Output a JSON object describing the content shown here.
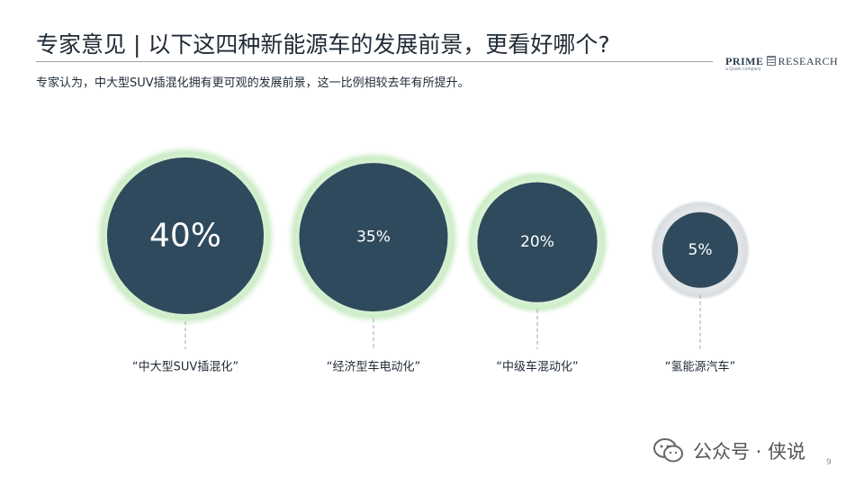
{
  "title": "专家意见 | 以下这四种新能源车的发展前景，更看好哪个?",
  "subtitle": "专家认为，中大型SUV插混化拥有更可观的发展前景，这一比例相较去年有所提升。",
  "logo": {
    "main": "PRIME",
    "main2": "RESEARCH",
    "tag": "a Quark company"
  },
  "watermark": {
    "text": "公众号 · 侠说"
  },
  "page_number": "9",
  "colors": {
    "bubble": "#2f4a5c",
    "glow": "#c8ebc2",
    "glow_grey": "#d4d8dc",
    "text": "#1f2a36"
  },
  "chart_data": {
    "type": "bubble",
    "title": "",
    "categories": [
      "“中大型SUV插混化”",
      "“经济型车电动化”",
      "“中级车混动化”",
      "“氢能源汽车”"
    ],
    "values": [
      40,
      35,
      20,
      5
    ],
    "value_labels": [
      "40%",
      "35%",
      "20%",
      "5%"
    ],
    "unit": "%"
  }
}
